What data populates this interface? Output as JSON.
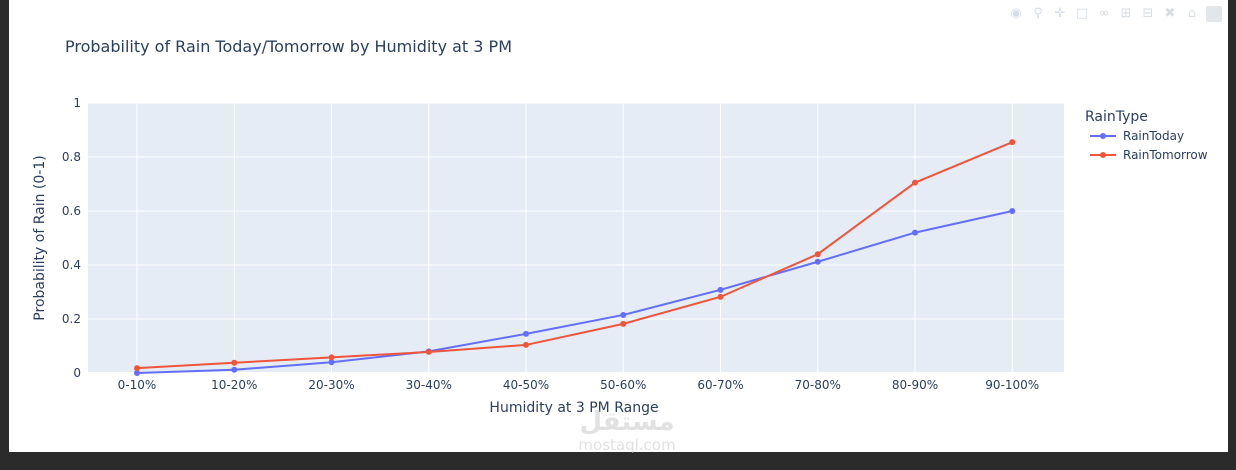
{
  "chart_data": {
    "type": "line",
    "title": "Probability of Rain Today/Tomorrow by Humidity at 3 PM",
    "xlabel": "Humidity at 3 PM Range",
    "ylabel": "Probability of Rain (0-1)",
    "ylim": [
      0,
      1
    ],
    "yticks": [
      0,
      0.2,
      0.4,
      0.6,
      0.8,
      1
    ],
    "ytick_labels": [
      "0",
      "0.2",
      "0.4",
      "0.6",
      "0.8",
      "1"
    ],
    "categories": [
      "0-10%",
      "10-20%",
      "20-30%",
      "30-40%",
      "40-50%",
      "50-60%",
      "60-70%",
      "70-80%",
      "80-90%",
      "90-100%"
    ],
    "legend_title": "RainType",
    "legend_position": "right",
    "grid": true,
    "series": [
      {
        "name": "RainToday",
        "color": "#636efa",
        "values": [
          0.0,
          0.012,
          0.04,
          0.08,
          0.145,
          0.215,
          0.308,
          0.412,
          0.52,
          0.6
        ]
      },
      {
        "name": "RainTomorrow",
        "color": "#ef553b",
        "values": [
          0.018,
          0.038,
          0.058,
          0.078,
          0.104,
          0.182,
          0.282,
          0.44,
          0.705,
          0.855
        ]
      }
    ]
  },
  "modebar": {
    "icons": [
      "camera-icon",
      "zoom-icon",
      "pan-icon",
      "box-select-icon",
      "lasso-icon",
      "zoom-in-icon",
      "zoom-out-icon",
      "autoscale-icon",
      "reset-axes-icon",
      "plotly-logo"
    ]
  },
  "watermark": {
    "arabic": "مستقل",
    "latin": "mostaql.com"
  }
}
